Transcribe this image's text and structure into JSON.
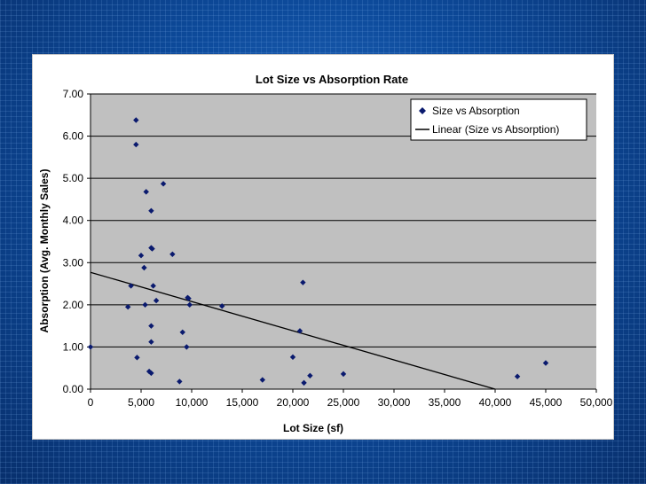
{
  "chart_data": {
    "type": "scatter",
    "title": "Lot Size vs Absorption Rate",
    "xlabel": "Lot Size (sf)",
    "ylabel": "Absorption (Avg. Monthly Sales)",
    "xlim": [
      0,
      50000
    ],
    "ylim": [
      0,
      7
    ],
    "x_ticks": [
      0,
      5000,
      10000,
      15000,
      20000,
      25000,
      30000,
      35000,
      40000,
      45000,
      50000
    ],
    "x_tick_labels": [
      "0",
      "5,000",
      "10,000",
      "15,000",
      "20,000",
      "25,000",
      "30,000",
      "35,000",
      "40,000",
      "45,000",
      "50,000"
    ],
    "y_ticks": [
      0,
      1,
      2,
      3,
      4,
      5,
      6,
      7
    ],
    "y_tick_labels": [
      "0.00",
      "1.00",
      "2.00",
      "3.00",
      "4.00",
      "5.00",
      "6.00",
      "7.00"
    ],
    "grid": "horizontal",
    "legend_position": "top-right",
    "colors": {
      "plot_bg": "#c0c0c0",
      "marker": "#0a1a6e",
      "trendline": "#000000"
    },
    "series": [
      {
        "name": "Size vs Absorption",
        "kind": "scatter",
        "points": [
          [
            0,
            1.0
          ],
          [
            3700,
            1.95
          ],
          [
            4000,
            2.45
          ],
          [
            4500,
            6.38
          ],
          [
            4500,
            5.8
          ],
          [
            4600,
            0.75
          ],
          [
            5000,
            3.17
          ],
          [
            5300,
            2.88
          ],
          [
            5400,
            2.0
          ],
          [
            5500,
            4.68
          ],
          [
            5800,
            0.42
          ],
          [
            6000,
            0.38
          ],
          [
            6000,
            4.23
          ],
          [
            6000,
            3.35
          ],
          [
            6100,
            3.33
          ],
          [
            6000,
            1.5
          ],
          [
            6000,
            1.12
          ],
          [
            6200,
            2.45
          ],
          [
            6500,
            2.1
          ],
          [
            7200,
            4.87
          ],
          [
            8100,
            3.2
          ],
          [
            8800,
            0.18
          ],
          [
            9100,
            1.35
          ],
          [
            9500,
            1.0
          ],
          [
            9600,
            2.17
          ],
          [
            9700,
            2.15
          ],
          [
            9800,
            2.0
          ],
          [
            13000,
            1.97
          ],
          [
            17000,
            0.22
          ],
          [
            20000,
            0.76
          ],
          [
            20700,
            1.38
          ],
          [
            21000,
            2.53
          ],
          [
            21100,
            0.15
          ],
          [
            21700,
            0.32
          ],
          [
            25000,
            0.36
          ],
          [
            42200,
            0.3
          ],
          [
            45000,
            0.62
          ]
        ]
      },
      {
        "name": "Linear (Size vs Absorption)",
        "kind": "line",
        "points": [
          [
            0,
            2.77
          ],
          [
            40000,
            0.0
          ]
        ]
      }
    ]
  }
}
